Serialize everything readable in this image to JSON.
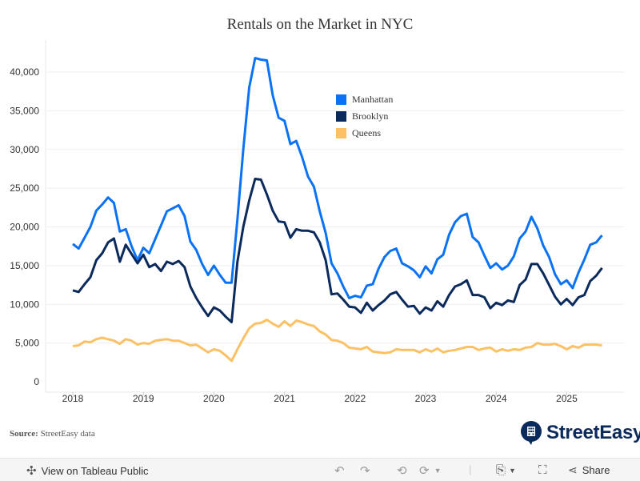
{
  "chart_data": {
    "type": "line",
    "title": "Rentals on the Market in NYC",
    "xlabel": "",
    "ylabel": "",
    "x_start": "2018-01",
    "x_end": "2025-07",
    "x_ticks": [
      "2018",
      "2019",
      "2020",
      "2021",
      "2022",
      "2023",
      "2024",
      "2025"
    ],
    "y_ticks": [
      0,
      5000,
      10000,
      15000,
      20000,
      25000,
      30000,
      35000,
      40000
    ],
    "y_tick_labels": [
      "0",
      "5,000",
      "10,000",
      "15,000",
      "20,000",
      "25,000",
      "30,000",
      "35,000",
      "40,000"
    ],
    "ylim": [
      0,
      44000
    ],
    "grid": "horizontal",
    "legend_position": "top-center",
    "series": [
      {
        "name": "Manhattan",
        "color": "#0a72f5",
        "values": [
          17800,
          17200,
          18600,
          20000,
          22100,
          22900,
          23800,
          23100,
          19400,
          19700,
          17500,
          15700,
          17300,
          16600,
          18400,
          20200,
          22000,
          22400,
          22800,
          21400,
          18100,
          17000,
          15200,
          13800,
          15000,
          13800,
          12800,
          12800,
          21000,
          30000,
          38000,
          41800,
          41600,
          41500,
          37000,
          34100,
          33700,
          30700,
          31100,
          29000,
          26500,
          25200,
          22000,
          19200,
          15300,
          14000,
          12300,
          10800,
          11100,
          10900,
          12400,
          12600,
          14600,
          16100,
          16900,
          17200,
          15300,
          14900,
          14400,
          13500,
          14900,
          14000,
          15800,
          16400,
          19000,
          20600,
          21400,
          21700,
          18700,
          18000,
          16300,
          14700,
          15300,
          14500,
          15000,
          16200,
          18500,
          19400,
          21300,
          19800,
          17600,
          16100,
          13900,
          12600,
          13100,
          12100,
          14100,
          15800,
          17700,
          18000,
          18900
        ]
      },
      {
        "name": "Brooklyn",
        "color": "#0b2a5c",
        "values": [
          11800,
          11600,
          12600,
          13500,
          15700,
          16600,
          18000,
          18500,
          15500,
          17700,
          16500,
          15300,
          16400,
          14800,
          15200,
          14300,
          15500,
          15200,
          15600,
          14800,
          12300,
          10800,
          9600,
          8500,
          9600,
          9200,
          8400,
          7700,
          15500,
          20000,
          23400,
          26200,
          26100,
          24200,
          22100,
          20700,
          20600,
          18600,
          19700,
          19500,
          19500,
          19300,
          18000,
          15700,
          11300,
          11400,
          10600,
          9700,
          9600,
          8900,
          10200,
          9200,
          9900,
          10500,
          11300,
          11600,
          10600,
          9700,
          9800,
          8800,
          9600,
          9200,
          10400,
          9700,
          11200,
          12300,
          12600,
          13100,
          11200,
          11200,
          10900,
          9500,
          10200,
          9900,
          10500,
          10300,
          12500,
          13200,
          15200,
          15200,
          14000,
          12500,
          11000,
          10000,
          10700,
          9900,
          10900,
          11200,
          13000,
          13700,
          14700
        ]
      },
      {
        "name": "Queens",
        "color": "#fcc065",
        "values": [
          4600,
          4700,
          5200,
          5100,
          5500,
          5700,
          5500,
          5300,
          4900,
          5500,
          5300,
          4800,
          5000,
          4900,
          5300,
          5400,
          5500,
          5300,
          5300,
          5000,
          4700,
          4800,
          4300,
          3800,
          4200,
          4000,
          3400,
          2700,
          4200,
          5600,
          6900,
          7500,
          7600,
          8000,
          7500,
          7100,
          7800,
          7200,
          7900,
          7700,
          7400,
          7200,
          6500,
          6100,
          5400,
          5300,
          5000,
          4400,
          4300,
          4200,
          4500,
          3900,
          3800,
          3700,
          3800,
          4200,
          4100,
          4100,
          4100,
          3800,
          4200,
          3900,
          4300,
          3800,
          4000,
          4100,
          4300,
          4500,
          4500,
          4100,
          4300,
          4400,
          3900,
          4200,
          4000,
          4200,
          4100,
          4400,
          4500,
          5000,
          4800,
          4800,
          4900,
          4600,
          4200,
          4600,
          4400,
          4800,
          4800,
          4800,
          4700
        ]
      }
    ]
  },
  "source": {
    "label": "Source:",
    "text": "StreetEasy data"
  },
  "logo": {
    "text": "StreetEasy"
  },
  "toolbar": {
    "view_label": "View on Tableau Public",
    "share_label": "Share"
  }
}
